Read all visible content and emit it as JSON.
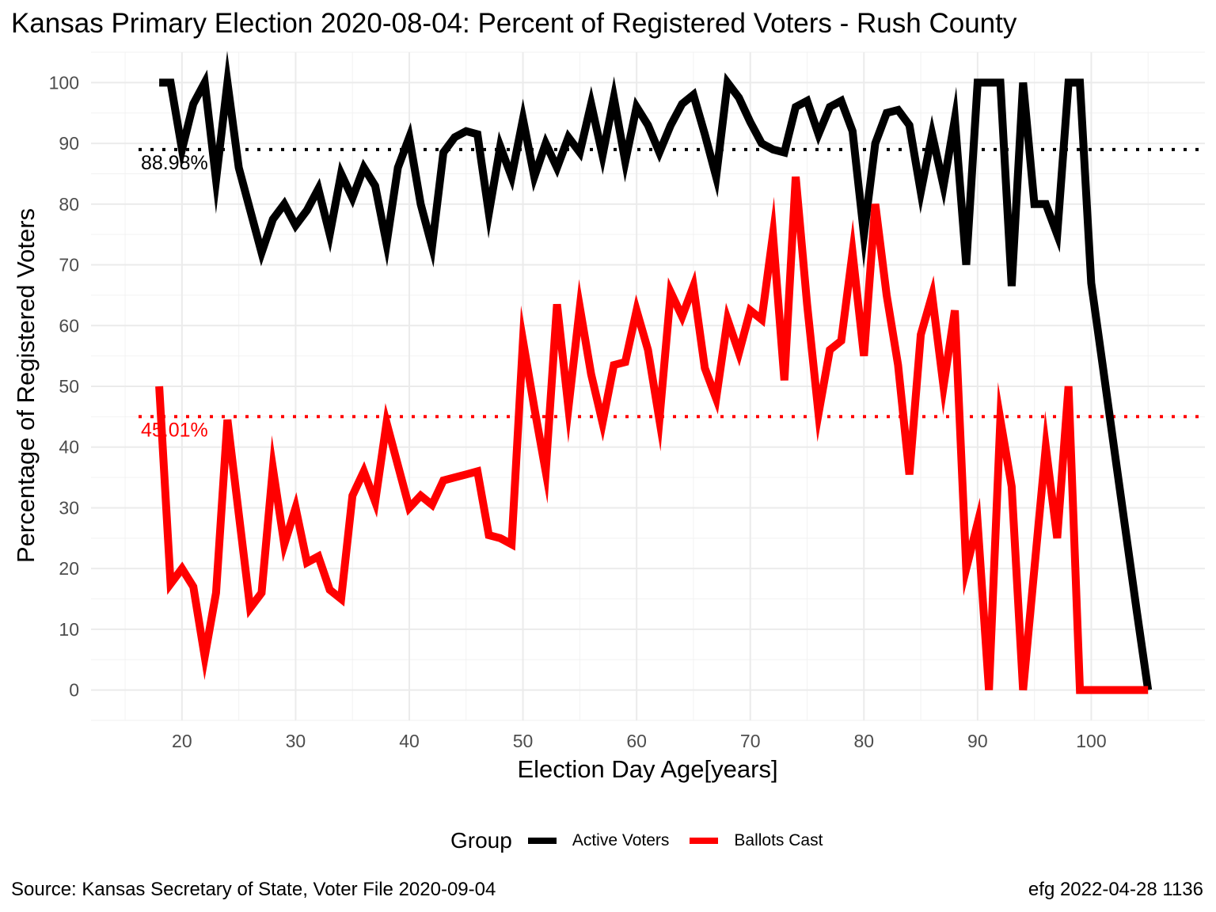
{
  "chart_data": {
    "type": "line",
    "title": "Kansas Primary Election 2020-08-04:  Percent of Registered Voters - Rush County",
    "xlabel": "Election Day Age[years]",
    "ylabel": "Percentage of Registered Voters",
    "xlim": [
      12,
      110
    ],
    "ylim": [
      -5,
      105
    ],
    "x_ticks": [
      20,
      30,
      40,
      50,
      60,
      70,
      80,
      90,
      100
    ],
    "y_ticks": [
      0,
      10,
      20,
      30,
      40,
      50,
      60,
      70,
      80,
      90,
      100
    ],
    "grid": true,
    "legend_position": "bottom",
    "legend_title": "Group",
    "x": [
      18,
      19,
      20,
      21,
      22,
      23,
      24,
      25,
      26,
      27,
      28,
      29,
      30,
      31,
      32,
      33,
      34,
      35,
      36,
      37,
      38,
      39,
      40,
      41,
      42,
      43,
      44,
      45,
      46,
      47,
      48,
      49,
      50,
      51,
      52,
      53,
      54,
      55,
      56,
      57,
      58,
      59,
      60,
      61,
      62,
      63,
      64,
      65,
      66,
      67,
      68,
      69,
      70,
      71,
      72,
      73,
      74,
      75,
      76,
      77,
      78,
      79,
      80,
      81,
      82,
      83,
      84,
      85,
      86,
      87,
      88,
      89,
      90,
      91,
      92,
      93,
      94,
      95,
      96,
      97,
      98,
      99,
      100,
      101,
      102,
      103,
      104,
      105
    ],
    "series": [
      {
        "name": "Active Voters",
        "color": "#000000",
        "values": [
          100,
          100,
          89,
          96.5,
          100,
          84,
          100,
          86,
          79,
          72,
          77.5,
          80,
          76.5,
          79,
          82.5,
          75,
          85,
          81,
          86,
          83,
          73.5,
          86,
          91,
          80,
          73,
          88.5,
          91,
          92,
          91.5,
          78.5,
          89.5,
          84.5,
          94,
          84.5,
          90,
          86,
          91,
          88.5,
          96.5,
          88,
          97.5,
          87,
          96,
          93,
          88.5,
          93,
          96.5,
          98,
          91.5,
          84.5,
          100,
          97.5,
          93.5,
          90,
          89,
          88.5,
          96,
          97,
          91.5,
          96,
          97,
          92,
          75,
          90,
          95,
          95.5,
          93,
          82,
          91.5,
          83,
          94,
          70,
          100,
          100,
          100,
          66.5,
          100,
          80,
          80,
          75,
          100,
          100,
          67,
          53.5,
          40,
          26.5,
          13,
          0
        ]
      },
      {
        "name": "Ballots Cast",
        "color": "#ff0000",
        "values": [
          50,
          17.5,
          20,
          17,
          5.5,
          16,
          44.5,
          29,
          13.5,
          16,
          36.5,
          24,
          30,
          21,
          22,
          16.5,
          15,
          32,
          36,
          31,
          44,
          37,
          30,
          32,
          30.5,
          34.5,
          35,
          35.5,
          36,
          25.5,
          25,
          24,
          57.5,
          46.5,
          36,
          63.5,
          46.5,
          63,
          52,
          44,
          53.5,
          54,
          62.5,
          56,
          44.5,
          65.5,
          61.5,
          66.5,
          53,
          48,
          61,
          55.5,
          62.5,
          61,
          75,
          51,
          84.5,
          63.5,
          45.5,
          56,
          57.5,
          72,
          55,
          80,
          65,
          53.5,
          35.5,
          58.5,
          65,
          50,
          62.5,
          20,
          27.5,
          0,
          44.5,
          33.5,
          0,
          20,
          40,
          25,
          50,
          0,
          0,
          0,
          0,
          0,
          0,
          0
        ]
      }
    ],
    "reference_lines": [
      {
        "series": "Active Voters",
        "value": 88.98,
        "label": "88.98%",
        "color": "#000000"
      },
      {
        "series": "Ballots Cast",
        "value": 45.01,
        "label": "45.01%",
        "color": "#ff0000"
      }
    ]
  },
  "caption": {
    "source": "Source:  Kansas Secretary of State, Voter File  2020-09-04",
    "credit": "efg 2022-04-28 1136"
  }
}
